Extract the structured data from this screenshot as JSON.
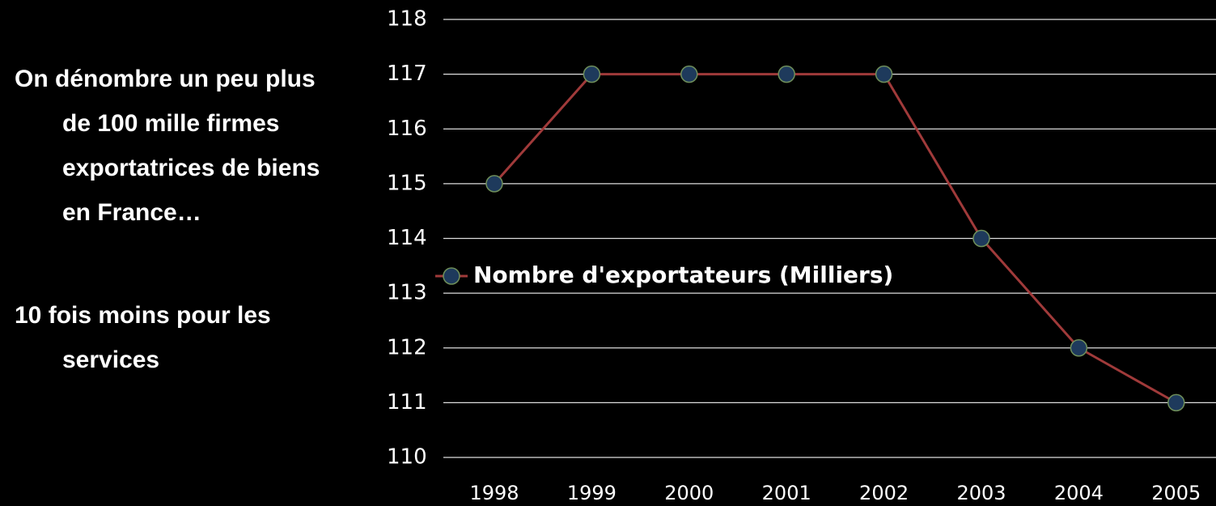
{
  "text": {
    "paragraphs": [
      [
        "On dénombre un peu plus",
        "de 100 mille firmes",
        "exportatrices de biens",
        "en France…"
      ],
      [
        "10 fois moins pour les",
        "services"
      ]
    ]
  },
  "chart_data": {
    "type": "line",
    "categories": [
      "1998",
      "1999",
      "2000",
      "2001",
      "2002",
      "2003",
      "2004",
      "2005"
    ],
    "series": [
      {
        "name": "Nombre d'exportateurs (Milliers)",
        "color": "#a03a3a",
        "marker_color": "#1e3a5c",
        "values": [
          115,
          117,
          117,
          117,
          117,
          114,
          112,
          111
        ]
      }
    ],
    "ylim": [
      110,
      118
    ],
    "yticks": [
      110,
      111,
      112,
      113,
      114,
      115,
      116,
      117,
      118
    ],
    "grid": true,
    "legend": "left"
  }
}
